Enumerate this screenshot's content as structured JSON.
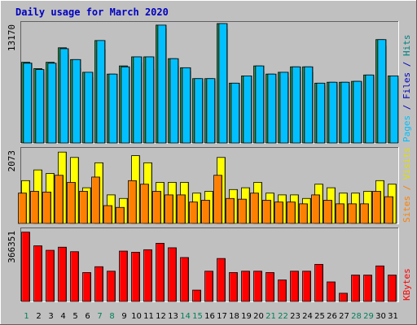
{
  "chart_data": {
    "type": "bar",
    "title": "Daily usage for March 2020",
    "categories": [
      "1",
      "2",
      "3",
      "4",
      "5",
      "6",
      "7",
      "8",
      "9",
      "10",
      "11",
      "12",
      "13",
      "14",
      "15",
      "16",
      "17",
      "18",
      "19",
      "20",
      "21",
      "22",
      "23",
      "24",
      "25",
      "26",
      "27",
      "28",
      "29",
      "30",
      "31"
    ],
    "weekend_days": [
      1,
      7,
      8,
      14,
      15,
      21,
      22,
      28,
      29
    ],
    "panels": [
      {
        "ylabel_parts": [
          {
            "text": "Pages",
            "color": "#00c0ff"
          },
          {
            "text": " / ",
            "color": "#0000c0"
          },
          {
            "text": "Files",
            "color": "#0000c0"
          },
          {
            "text": " / ",
            "color": "#0000c0"
          },
          {
            "text": "Hits",
            "color": "#008080"
          }
        ],
        "max_label": "13170",
        "ymax": 13170,
        "series": [
          {
            "name": "Hits",
            "color": "#008040",
            "values": [
              8900,
              8200,
              8900,
              10500,
              9200,
              7800,
              11300,
              7600,
              8500,
              9500,
              9500,
              13000,
              9300,
              8300,
              7100,
              7100,
              13170,
              6600,
              7400,
              8500,
              7600,
              7800,
              8400,
              8400,
              6600,
              6700,
              6700,
              6800,
              7500,
              11400,
              7400
            ]
          },
          {
            "name": "Files",
            "color": "#0000c0",
            "values": [
              8800,
              7800,
              8200,
              9800,
              8200,
              7200,
              10300,
              6900,
              8200,
              8800,
              8100,
              12600,
              8500,
              7900,
              6700,
              6800,
              12500,
              6400,
              7000,
              7800,
              7000,
              7200,
              7900,
              7800,
              6300,
              6400,
              6300,
              6600,
              7300,
              10700,
              7100
            ]
          },
          {
            "name": "Pages",
            "color": "#00c0ff",
            "values": [
              8800,
              8100,
              8800,
              10400,
              9200,
              7800,
              11300,
              7600,
              8400,
              9500,
              9500,
              13000,
              9300,
              8300,
              7100,
              7100,
              13170,
              6600,
              7400,
              8500,
              7600,
              7800,
              8400,
              8400,
              6600,
              6700,
              6700,
              6800,
              7500,
              11400,
              7400
            ]
          }
        ]
      },
      {
        "ylabel_parts": [
          {
            "text": "Sites",
            "color": "#ff8000"
          },
          {
            "text": " / ",
            "color": "#ff8000"
          },
          {
            "text": "Visits",
            "color": "#e0e000"
          }
        ],
        "max_label": "2073",
        "ymax": 2073,
        "series": [
          {
            "name": "Visits",
            "color": "#ffff00",
            "values": [
              1200,
              1500,
              1400,
              2000,
              1850,
              1000,
              1700,
              800,
              700,
              1900,
              1700,
              1150,
              1150,
              1150,
              850,
              900,
              1850,
              950,
              1000,
              1150,
              850,
              800,
              800,
              700,
              1100,
              1000,
              850,
              850,
              900,
              1200,
              1100
            ]
          },
          {
            "name": "Sites",
            "color": "#ff8000",
            "values": [
              850,
              900,
              880,
              1350,
              1150,
              900,
              1300,
              500,
              450,
              1200,
              1100,
              900,
              800,
              800,
              600,
              650,
              1350,
              700,
              680,
              850,
              650,
              600,
              600,
              550,
              800,
              650,
              550,
              550,
              550,
              900,
              750
            ]
          }
        ]
      },
      {
        "ylabel_parts": [
          {
            "text": "KBytes",
            "color": "#ff0000"
          }
        ],
        "max_label": "366351",
        "ymax": 366351,
        "series": [
          {
            "name": "KBytes",
            "color": "#ff0000",
            "values": [
              355000,
              285000,
              262000,
              278000,
              255000,
              148000,
              178000,
              155000,
              258000,
              252000,
              265000,
              298000,
              275000,
              225000,
              58000,
              155000,
              220000,
              148000,
              155000,
              155000,
              148000,
              110000,
              155000,
              155000,
              190000,
              100000,
              42000,
              135000,
              135000,
              182000,
              135000
            ]
          }
        ]
      }
    ]
  }
}
